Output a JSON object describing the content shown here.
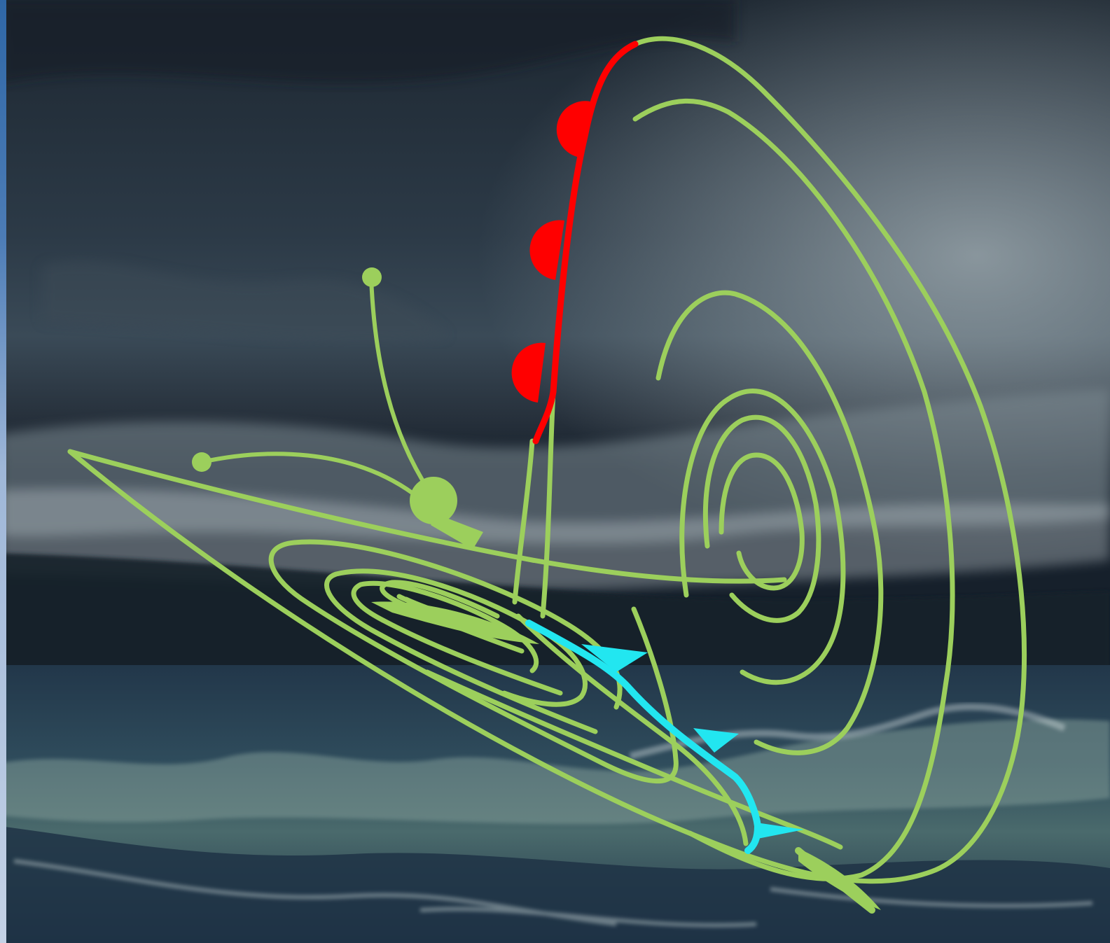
{
  "palette": {
    "sky_top": "#1d2731",
    "sky_mid": "#3a4a57",
    "cloud_band": "#7d8b93",
    "cloud_dark": "#27313c",
    "horizon": "#16202b",
    "sea_dark": "#1f3345",
    "sea_mid": "#3b5866",
    "foam": "#c9d6d6",
    "left_edge": "#3b6ea8",
    "left_edge_light": "#9fb7d8",
    "attractor": "#9ccf5c",
    "warm_front": "#ff0000",
    "cold_front": "#22e6f0"
  },
  "icons": {
    "butterfly": "butterfly-icon",
    "warm_front": "warm-front-icon",
    "cold_front": "cold-front-icon"
  }
}
